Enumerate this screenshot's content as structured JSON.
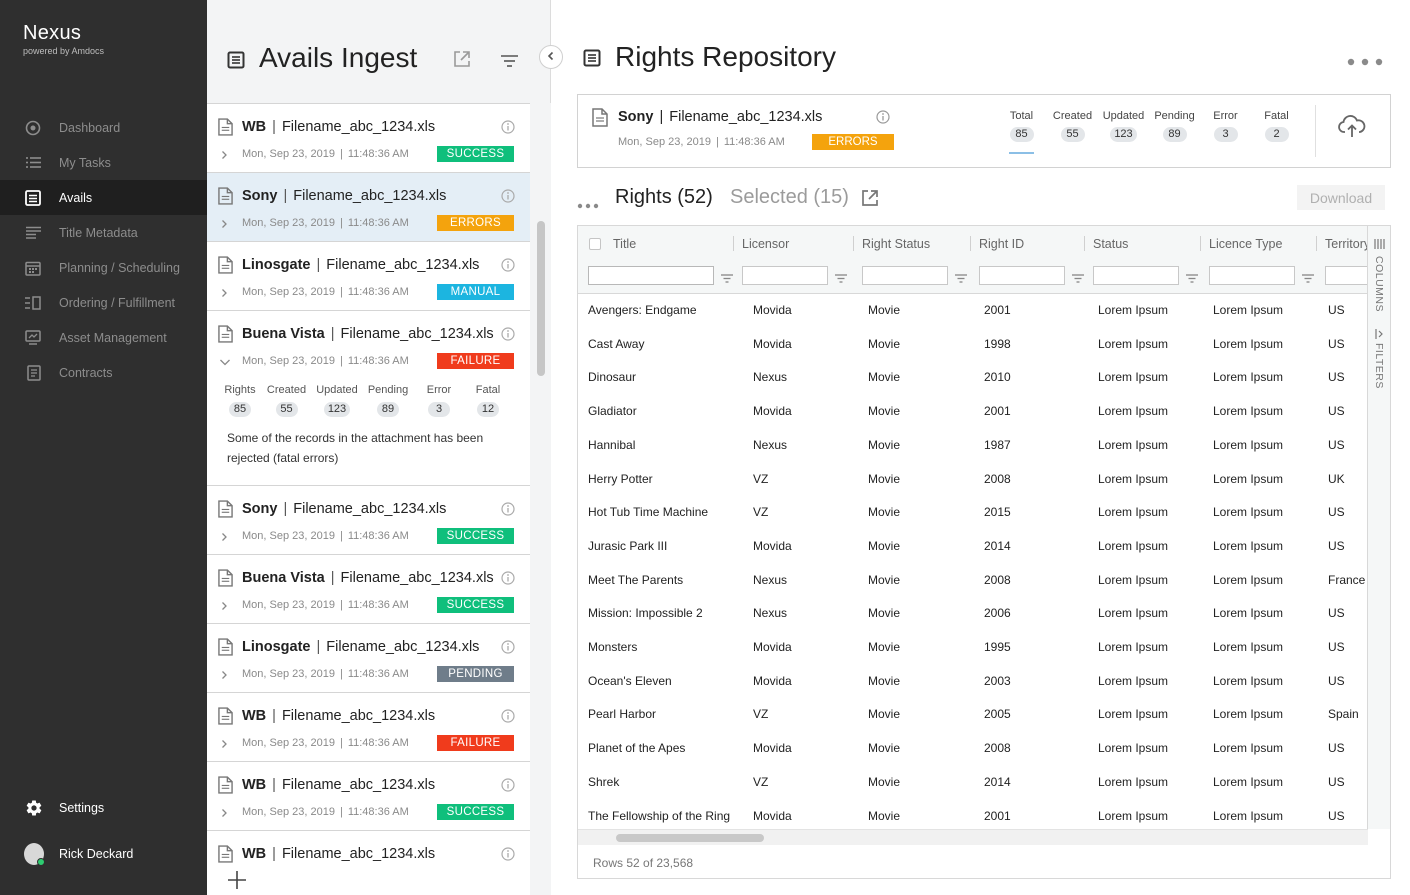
{
  "sidebar": {
    "brand": "Nexus",
    "brand_sub": "powered by Amdocs",
    "items": [
      {
        "label": "Dashboard",
        "icon": "dashboard-icon",
        "active": false
      },
      {
        "label": "My Tasks",
        "icon": "tasks-icon",
        "active": false
      },
      {
        "label": "Avails",
        "icon": "avails-icon",
        "active": true
      },
      {
        "label": "Title Metadata",
        "icon": "title-metadata-icon",
        "active": false
      },
      {
        "label": "Planning / Scheduling",
        "icon": "calendar-icon",
        "active": false
      },
      {
        "label": "Ordering / Fulfillment",
        "icon": "ordering-icon",
        "active": false
      },
      {
        "label": "Asset Management",
        "icon": "asset-icon",
        "active": false
      },
      {
        "label": "Contracts",
        "icon": "contracts-icon",
        "active": false
      }
    ],
    "settings": "Settings",
    "user": "Rick Deckard"
  },
  "ingest": {
    "title": "Avails Ingest",
    "cards": [
      {
        "licensor": "WB",
        "file": "Filename_abc_1234.xls",
        "date": "Mon, Sep 23, 2019",
        "time": "11:48:36 AM",
        "status": "SUCCESS",
        "kind": "success"
      },
      {
        "licensor": "Sony",
        "file": "Filename_abc_1234.xls",
        "date": "Mon, Sep 23, 2019",
        "time": "11:48:36 AM",
        "status": "ERRORS",
        "kind": "errors",
        "selected": true
      },
      {
        "licensor": "Linosgate",
        "file": "Filename_abc_1234.xls",
        "date": "Mon, Sep 23, 2019",
        "time": "11:48:36 AM",
        "status": "MANUAL",
        "kind": "manual"
      },
      {
        "licensor": "Buena Vista",
        "file": "Filename_abc_1234.xls",
        "date": "Mon, Sep 23, 2019",
        "time": "11:48:36 AM",
        "status": "FAILURE",
        "kind": "failure",
        "expanded": true,
        "stats": [
          {
            "label": "Rights",
            "value": "85"
          },
          {
            "label": "Created",
            "value": "55"
          },
          {
            "label": "Updated",
            "value": "123"
          },
          {
            "label": "Pending",
            "value": "89"
          },
          {
            "label": "Error",
            "value": "3"
          },
          {
            "label": "Fatal",
            "value": "12"
          }
        ],
        "message": "Some of the records in the attachment has been rejected (fatal errors)"
      },
      {
        "licensor": "Sony",
        "file": "Filename_abc_1234.xls",
        "date": "Mon, Sep 23, 2019",
        "time": "11:48:36 AM",
        "status": "SUCCESS",
        "kind": "success"
      },
      {
        "licensor": "Buena Vista",
        "file": "Filename_abc_1234.xls",
        "date": "Mon, Sep 23, 2019",
        "time": "11:48:36 AM",
        "status": "SUCCESS",
        "kind": "success"
      },
      {
        "licensor": "Linosgate",
        "file": "Filename_abc_1234.xls",
        "date": "Mon, Sep 23, 2019",
        "time": "11:48:36 AM",
        "status": "PENDING",
        "kind": "pending"
      },
      {
        "licensor": "WB",
        "file": "Filename_abc_1234.xls",
        "date": "Mon, Sep 23, 2019",
        "time": "11:48:36 AM",
        "status": "FAILURE",
        "kind": "failure"
      },
      {
        "licensor": "WB",
        "file": "Filename_abc_1234.xls",
        "date": "Mon, Sep 23, 2019",
        "time": "11:48:36 AM",
        "status": "SUCCESS",
        "kind": "success"
      },
      {
        "licensor": "WB",
        "file": "Filename_abc_1234.xls",
        "date": "",
        "time": "",
        "status": "",
        "kind": "none"
      }
    ]
  },
  "repo": {
    "title": "Rights Repository",
    "summary": {
      "licensor": "Sony",
      "file": "Filename_abc_1234.xls",
      "date": "Mon, Sep 23, 2019",
      "time": "11:48:36 AM",
      "status": "ERRORS",
      "stats": [
        {
          "label": "Total",
          "value": "85"
        },
        {
          "label": "Created",
          "value": "55"
        },
        {
          "label": "Updated",
          "value": "123"
        },
        {
          "label": "Pending",
          "value": "89"
        },
        {
          "label": "Error",
          "value": "3"
        },
        {
          "label": "Fatal",
          "value": "2"
        }
      ]
    },
    "rights_label": "Rights (52)",
    "selected_label": "Selected (15)",
    "download_label": "Download",
    "columns": [
      "Title",
      "Licensor",
      "Right Status",
      "Right ID",
      "Status",
      "Licence Type",
      "Territory"
    ],
    "rows": [
      [
        "Avengers: Endgame",
        "Movida",
        "Movie",
        "2001",
        "Lorem Ipsum",
        "Lorem Ipsum",
        "US"
      ],
      [
        "Cast Away",
        "Movida",
        "Movie",
        "1998",
        "Lorem Ipsum",
        "Lorem Ipsum",
        "US"
      ],
      [
        "Dinosaur",
        "Nexus",
        "Movie",
        "2010",
        "Lorem Ipsum",
        "Lorem Ipsum",
        "US"
      ],
      [
        "Gladiator",
        "Movida",
        "Movie",
        "2001",
        "Lorem Ipsum",
        "Lorem Ipsum",
        "US"
      ],
      [
        "Hannibal",
        "Nexus",
        "Movie",
        "1987",
        "Lorem Ipsum",
        "Lorem Ipsum",
        "US"
      ],
      [
        "Herry Potter",
        "VZ",
        "Movie",
        "2008",
        "Lorem Ipsum",
        "Lorem Ipsum",
        "UK"
      ],
      [
        "Hot Tub Time Machine",
        "VZ",
        "Movie",
        "2015",
        "Lorem Ipsum",
        "Lorem Ipsum",
        "US"
      ],
      [
        "Jurasic Park III",
        "Movida",
        "Movie",
        "2014",
        "Lorem Ipsum",
        "Lorem Ipsum",
        "US"
      ],
      [
        "Meet The Parents",
        "Nexus",
        "Movie",
        "2008",
        "Lorem Ipsum",
        "Lorem Ipsum",
        "France"
      ],
      [
        "Mission: Impossible 2",
        "Nexus",
        "Movie",
        "2006",
        "Lorem Ipsum",
        "Lorem Ipsum",
        "US"
      ],
      [
        "Monsters",
        "Movida",
        "Movie",
        "1995",
        "Lorem Ipsum",
        "Lorem Ipsum",
        "US"
      ],
      [
        "Ocean's Eleven",
        "Movida",
        "Movie",
        "2003",
        "Lorem Ipsum",
        "Lorem Ipsum",
        "US"
      ],
      [
        "Pearl Harbor",
        "VZ",
        "Movie",
        "2005",
        "Lorem Ipsum",
        "Lorem Ipsum",
        "Spain"
      ],
      [
        "Planet of the Apes",
        "Movida",
        "Movie",
        "2008",
        "Lorem Ipsum",
        "Lorem Ipsum",
        "US"
      ],
      [
        "Shrek",
        "VZ",
        "Movie",
        "2014",
        "Lorem Ipsum",
        "Lorem Ipsum",
        "US"
      ],
      [
        "The Fellowship of the Ring",
        "Movida",
        "Movie",
        "2001",
        "Lorem Ipsum",
        "Lorem Ipsum",
        "US"
      ]
    ],
    "columns_tool": "COLUMNS",
    "filters_tool": "FILTERS",
    "footer": "Rows 52 of 23,568"
  }
}
